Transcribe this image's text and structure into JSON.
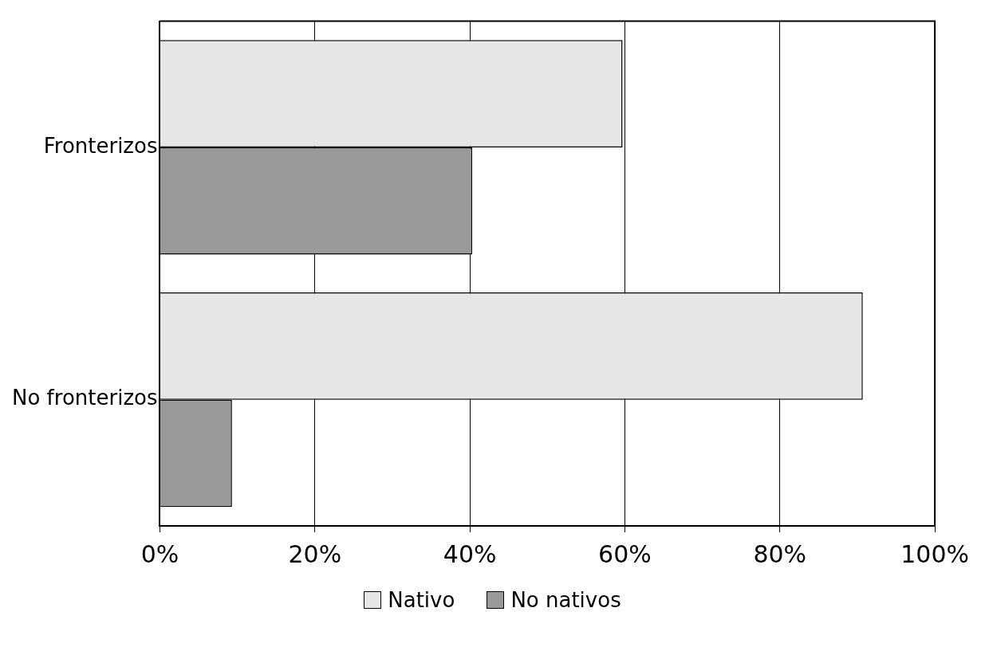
{
  "chart_data": {
    "type": "bar",
    "orientation": "horizontal",
    "categories": [
      "Fronterizos",
      "No fronterizos"
    ],
    "series": [
      {
        "name": "Nativo",
        "color": "#e6e6e6",
        "values": [
          59.7,
          90.7
        ]
      },
      {
        "name": "No nativos",
        "color": "#9a9a9a",
        "values": [
          40.3,
          9.3
        ]
      }
    ],
    "xlim": [
      0,
      100
    ],
    "xticks": [
      {
        "value": 0,
        "label": "0%"
      },
      {
        "value": 20,
        "label": "20%"
      },
      {
        "value": 40,
        "label": "40%"
      },
      {
        "value": 60,
        "label": "60%"
      },
      {
        "value": 80,
        "label": "80%"
      },
      {
        "value": 100,
        "label": "100%"
      }
    ],
    "grid": "x",
    "legend": "bottom"
  }
}
